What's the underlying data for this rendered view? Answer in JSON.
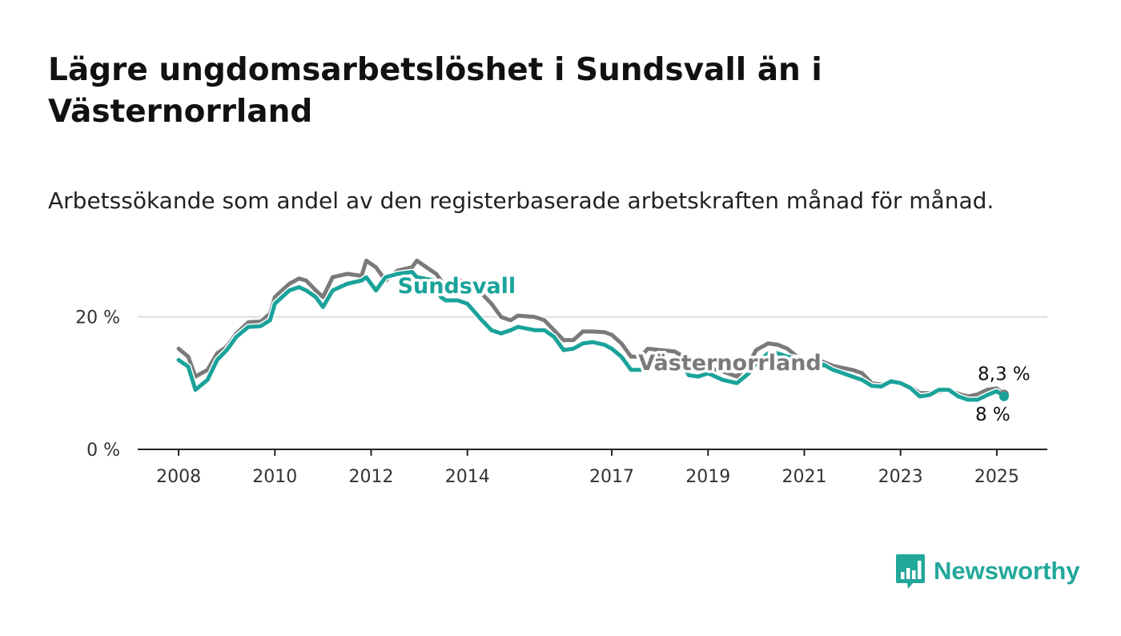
{
  "title": "Lägre ungdomsarbetslöshet i Sundsvall än i Västernorrland",
  "subtitle": "Arbetssökande som andel av den registerbaserade arbetskraften månad för månad.",
  "brand": {
    "name": "Newsworthy",
    "color": "#22a89a",
    "icon": "bar-chart-speech-bubble-icon"
  },
  "chart_data": {
    "type": "line",
    "y_ticks": [
      {
        "value": 0,
        "label": "0 %"
      },
      {
        "value": 20,
        "label": "20 %"
      }
    ],
    "x_ticks": [
      {
        "year": 2008,
        "label": "2008"
      },
      {
        "year": 2010,
        "label": "2010"
      },
      {
        "year": 2012,
        "label": "2012"
      },
      {
        "year": 2014,
        "label": "2014"
      },
      {
        "year": 2017,
        "label": "2017"
      },
      {
        "year": 2019,
        "label": "2019"
      },
      {
        "year": 2021,
        "label": "2021"
      },
      {
        "year": 2023,
        "label": "2023"
      },
      {
        "year": 2025,
        "label": "2025"
      }
    ],
    "xlim": [
      2007.15,
      2026.05
    ],
    "ylim": [
      0,
      30
    ],
    "grid": true,
    "series": [
      {
        "name": "Västernorrland",
        "color": "#7a7a7a",
        "label_year": 2017.55,
        "label_value": 12.0,
        "end_label": "8,3 %",
        "points": [
          [
            2008.0,
            15.2
          ],
          [
            2008.2,
            14.0
          ],
          [
            2008.35,
            11.0
          ],
          [
            2008.6,
            12.0
          ],
          [
            2008.8,
            14.5
          ],
          [
            2009.0,
            15.5
          ],
          [
            2009.2,
            17.5
          ],
          [
            2009.45,
            19.2
          ],
          [
            2009.7,
            19.3
          ],
          [
            2009.9,
            20.5
          ],
          [
            2010.0,
            23.0
          ],
          [
            2010.3,
            25.0
          ],
          [
            2010.5,
            25.8
          ],
          [
            2010.65,
            25.5
          ],
          [
            2010.85,
            24.0
          ],
          [
            2011.0,
            23.0
          ],
          [
            2011.2,
            26.0
          ],
          [
            2011.5,
            26.5
          ],
          [
            2011.8,
            26.2
          ],
          [
            2011.9,
            28.5
          ],
          [
            2012.1,
            27.5
          ],
          [
            2012.3,
            25.5
          ],
          [
            2012.55,
            27.0
          ],
          [
            2012.85,
            27.5
          ],
          [
            2012.95,
            28.5
          ],
          [
            2013.15,
            27.5
          ],
          [
            2013.35,
            26.5
          ],
          [
            2013.55,
            24.5
          ],
          [
            2013.8,
            25.7
          ],
          [
            2014.0,
            25.0
          ],
          [
            2014.3,
            23.5
          ],
          [
            2014.5,
            22.0
          ],
          [
            2014.7,
            20.0
          ],
          [
            2014.9,
            19.5
          ],
          [
            2015.05,
            20.2
          ],
          [
            2015.4,
            20.0
          ],
          [
            2015.6,
            19.5
          ],
          [
            2015.8,
            18.0
          ],
          [
            2016.0,
            16.5
          ],
          [
            2016.2,
            16.5
          ],
          [
            2016.4,
            17.8
          ],
          [
            2016.6,
            17.8
          ],
          [
            2016.85,
            17.7
          ],
          [
            2017.0,
            17.3
          ],
          [
            2017.2,
            16.0
          ],
          [
            2017.4,
            14.0
          ],
          [
            2017.6,
            14.0
          ],
          [
            2017.75,
            15.2
          ],
          [
            2018.0,
            15.0
          ],
          [
            2018.3,
            14.8
          ],
          [
            2018.5,
            14.0
          ],
          [
            2018.6,
            12.5
          ],
          [
            2018.8,
            12.0
          ],
          [
            2019.0,
            12.3
          ],
          [
            2019.3,
            11.8
          ],
          [
            2019.6,
            11.0
          ],
          [
            2019.85,
            13.0
          ],
          [
            2020.0,
            15.0
          ],
          [
            2020.25,
            16.0
          ],
          [
            2020.45,
            15.8
          ],
          [
            2020.65,
            15.2
          ],
          [
            2020.85,
            14.0
          ],
          [
            2021.0,
            13.5
          ],
          [
            2021.2,
            13.8
          ],
          [
            2021.4,
            13.2
          ],
          [
            2021.6,
            12.6
          ],
          [
            2021.8,
            12.3
          ],
          [
            2022.0,
            12.0
          ],
          [
            2022.2,
            11.5
          ],
          [
            2022.4,
            10.0
          ],
          [
            2022.6,
            9.8
          ],
          [
            2022.8,
            10.2
          ],
          [
            2023.0,
            10.0
          ],
          [
            2023.2,
            9.5
          ],
          [
            2023.4,
            8.5
          ],
          [
            2023.6,
            8.5
          ],
          [
            2023.8,
            8.7
          ],
          [
            2024.0,
            9.0
          ],
          [
            2024.2,
            8.4
          ],
          [
            2024.4,
            8.0
          ],
          [
            2024.6,
            8.3
          ],
          [
            2024.8,
            9.0
          ],
          [
            2025.0,
            9.2
          ],
          [
            2025.15,
            8.3
          ]
        ]
      },
      {
        "name": "Sundsvall",
        "color": "#1aa39a",
        "label_year": 2012.55,
        "label_value": 23.6,
        "end_label": "8 %",
        "points": [
          [
            2008.0,
            13.5
          ],
          [
            2008.2,
            12.5
          ],
          [
            2008.35,
            9.0
          ],
          [
            2008.6,
            10.5
          ],
          [
            2008.8,
            13.5
          ],
          [
            2009.0,
            15.0
          ],
          [
            2009.2,
            17.0
          ],
          [
            2009.45,
            18.5
          ],
          [
            2009.7,
            18.6
          ],
          [
            2009.9,
            19.5
          ],
          [
            2010.0,
            22.0
          ],
          [
            2010.3,
            24.0
          ],
          [
            2010.5,
            24.5
          ],
          [
            2010.65,
            24.0
          ],
          [
            2010.85,
            23.0
          ],
          [
            2011.0,
            21.5
          ],
          [
            2011.2,
            24.0
          ],
          [
            2011.5,
            25.0
          ],
          [
            2011.8,
            25.5
          ],
          [
            2011.9,
            26.0
          ],
          [
            2012.1,
            24.0
          ],
          [
            2012.3,
            26.0
          ],
          [
            2012.55,
            26.5
          ],
          [
            2012.85,
            26.8
          ],
          [
            2012.95,
            26.0
          ],
          [
            2013.1,
            25.8
          ],
          [
            2013.3,
            25.5
          ],
          [
            2013.45,
            23.0
          ],
          [
            2013.55,
            22.5
          ],
          [
            2013.8,
            22.5
          ],
          [
            2014.0,
            22.0
          ],
          [
            2014.3,
            19.5
          ],
          [
            2014.5,
            18.0
          ],
          [
            2014.7,
            17.5
          ],
          [
            2014.9,
            18.0
          ],
          [
            2015.05,
            18.5
          ],
          [
            2015.4,
            18.0
          ],
          [
            2015.6,
            18.0
          ],
          [
            2015.8,
            17.0
          ],
          [
            2016.0,
            15.0
          ],
          [
            2016.2,
            15.2
          ],
          [
            2016.4,
            16.0
          ],
          [
            2016.6,
            16.2
          ],
          [
            2016.85,
            15.8
          ],
          [
            2017.0,
            15.2
          ],
          [
            2017.2,
            14.0
          ],
          [
            2017.4,
            12.0
          ],
          [
            2017.6,
            12.0
          ],
          [
            2017.75,
            13.2
          ],
          [
            2018.0,
            13.3
          ],
          [
            2018.3,
            13.0
          ],
          [
            2018.5,
            12.5
          ],
          [
            2018.6,
            11.2
          ],
          [
            2018.8,
            11.0
          ],
          [
            2019.0,
            11.5
          ],
          [
            2019.3,
            10.5
          ],
          [
            2019.6,
            10.0
          ],
          [
            2019.85,
            11.5
          ],
          [
            2020.0,
            13.0
          ],
          [
            2020.25,
            14.5
          ],
          [
            2020.45,
            14.5
          ],
          [
            2020.65,
            14.0
          ],
          [
            2020.85,
            13.8
          ],
          [
            2021.0,
            13.5
          ],
          [
            2021.2,
            12.0
          ],
          [
            2021.4,
            12.8
          ],
          [
            2021.6,
            12.0
          ],
          [
            2021.8,
            11.5
          ],
          [
            2022.0,
            11.0
          ],
          [
            2022.2,
            10.5
          ],
          [
            2022.4,
            9.6
          ],
          [
            2022.6,
            9.5
          ],
          [
            2022.8,
            10.3
          ],
          [
            2023.0,
            10.0
          ],
          [
            2023.2,
            9.3
          ],
          [
            2023.4,
            8.0
          ],
          [
            2023.6,
            8.2
          ],
          [
            2023.8,
            9.0
          ],
          [
            2024.0,
            9.0
          ],
          [
            2024.2,
            8.0
          ],
          [
            2024.4,
            7.5
          ],
          [
            2024.6,
            7.5
          ],
          [
            2024.8,
            8.2
          ],
          [
            2025.0,
            8.8
          ],
          [
            2025.15,
            8.0
          ]
        ]
      }
    ]
  }
}
